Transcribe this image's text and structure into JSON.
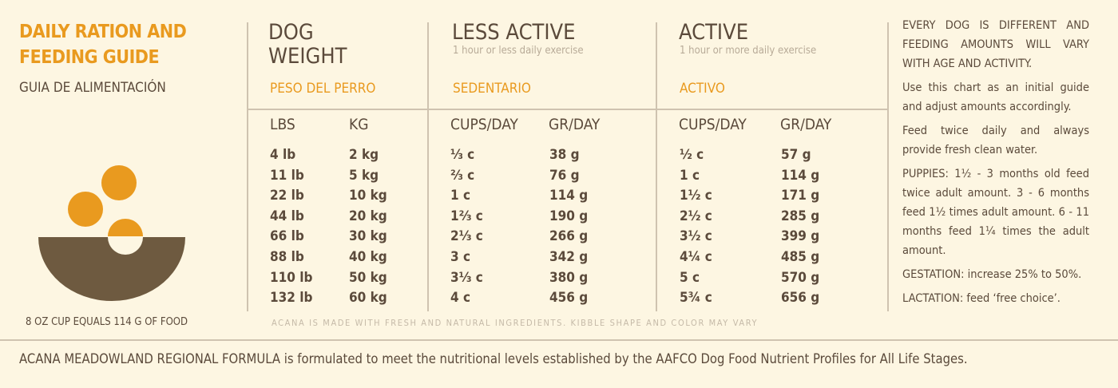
{
  "left": {
    "title_line1": "DAILY RATION AND",
    "title_line2": "FEEDING GUIDE",
    "subtitle": "GUIA DE ALIMENTACIÓN",
    "cup_note": "8 OZ CUP EQUALS 114 G OF FOOD"
  },
  "columns": {
    "weight": {
      "title_line1": "DOG",
      "title_line2": "WEIGHT",
      "spanish": "PESO DEL PERRO",
      "h1": "LBS",
      "h2": "KG"
    },
    "less": {
      "title": "LESS ACTIVE",
      "desc": "1 hour or less daily exercise",
      "spanish": "SEDENTARIO",
      "h1": "CUPS/DAY",
      "h2": "GR/DAY"
    },
    "active": {
      "title": "ACTIVE",
      "desc": "1 hour or more daily exercise",
      "spanish": "ACTIVO",
      "h1": "CUPS/DAY",
      "h2": "GR/DAY"
    }
  },
  "rows": [
    {
      "lbs": "4 lb",
      "kg": "2 kg",
      "less_cups": "⅓ c",
      "less_gr": "38 g",
      "act_cups": "½ c",
      "act_gr": "57 g"
    },
    {
      "lbs": "11 lb",
      "kg": "5 kg",
      "less_cups": "⅔ c",
      "less_gr": "76 g",
      "act_cups": "1 c",
      "act_gr": "114 g"
    },
    {
      "lbs": "22 lb",
      "kg": "10 kg",
      "less_cups": "1 c",
      "less_gr": "114 g",
      "act_cups": "1½ c",
      "act_gr": "171 g"
    },
    {
      "lbs": "44 lb",
      "kg": "20 kg",
      "less_cups": "1⅔ c",
      "less_gr": "190 g",
      "act_cups": "2½ c",
      "act_gr": "285 g"
    },
    {
      "lbs": "66 lb",
      "kg": "30 kg",
      "less_cups": "2⅓ c",
      "less_gr": "266 g",
      "act_cups": "3½ c",
      "act_gr": "399 g"
    },
    {
      "lbs": "88 lb",
      "kg": "40 kg",
      "less_cups": "3 c",
      "less_gr": "342 g",
      "act_cups": "4¼ c",
      "act_gr": "485 g"
    },
    {
      "lbs": "110 lb",
      "kg": "50 kg",
      "less_cups": "3⅓ c",
      "less_gr": "380 g",
      "act_cups": "5 c",
      "act_gr": "570 g"
    },
    {
      "lbs": "132 lb",
      "kg": "60 kg",
      "less_cups": "4 c",
      "less_gr": "456 g",
      "act_cups": "5¾ c",
      "act_gr": "656 g"
    }
  ],
  "table_note": "ACANA IS MADE WITH FRESH AND NATURAL INGREDIENTS. KIBBLE SHAPE AND COLOR MAY VARY",
  "side": [
    "EVERY DOG IS DIFFERENT AND FEEDING AMOUNTS WILL VARY WITH AGE AND ACTIVITY.",
    "Use this chart as an initial guide and adjust amounts accordingly.",
    "Feed twice daily and always provide fresh clean water.",
    "PUPPIES: 1½ - 3 months old feed twice adult amount. 3 - 6 months feed 1½ times adult amount. 6 - 11 months feed 1¼ times the adult amount.",
    "GESTATION: increase 25% to 50%.",
    "LACTATION: feed ‘free choice’."
  ],
  "footer": "ACANA MEADOWLAND REGIONAL FORMULA is formulated to meet the nutritional levels established by the AAFCO Dog Food Nutrient Profiles for All Life Stages.",
  "colors": {
    "background": "#fdf6e2",
    "text": "#5b4a3b",
    "accent": "#e99a1f",
    "bowl": "#6e5a40"
  },
  "icons": [
    "food-bowl-icon"
  ]
}
